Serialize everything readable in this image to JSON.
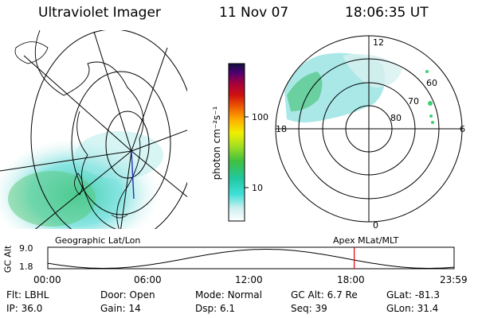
{
  "header": {
    "instrument": "Ultraviolet Imager",
    "date": "11 Nov 07",
    "time": "18:06:35 UT"
  },
  "colorbar": {
    "unit_label": "photon cm⁻²s⁻¹",
    "ticks": [
      "100",
      "10"
    ]
  },
  "polar_plot": {
    "mlt_labels": {
      "top": "12",
      "left": "18",
      "right": "6",
      "bottom": "0"
    },
    "lat_labels": [
      "60",
      "70",
      "80"
    ]
  },
  "map_labels": {
    "geographic": "Geographic Lat/Lon",
    "apex": "Apex  MLat/MLT"
  },
  "altitude_panel": {
    "axis_label": "GC Alt",
    "y_max": "9.0",
    "y_min": "1.8",
    "x_ticks": [
      "00:00",
      "06:00",
      "12:00",
      "18:00",
      "23:59"
    ],
    "marker_time_hours": 18.1,
    "marker_color": "#e00000"
  },
  "status": {
    "row1": [
      {
        "key": "Flt:",
        "value": "LBHL"
      },
      {
        "key": "Door:",
        "value": "Open"
      },
      {
        "key": "Mode:",
        "value": "Normal"
      },
      {
        "key": "GC Alt:",
        "value": "6.7 Re"
      },
      {
        "key": "GLat:",
        "value": "-81.3"
      }
    ],
    "row2": [
      {
        "key": "IP:",
        "value": "36.0"
      },
      {
        "key": "Gain:",
        "value": "14"
      },
      {
        "key": "Dsp:",
        "value": "6.1"
      },
      {
        "key": "Seq:",
        "value": "39"
      },
      {
        "key": "GLon:",
        "value": "31.4"
      }
    ]
  }
}
